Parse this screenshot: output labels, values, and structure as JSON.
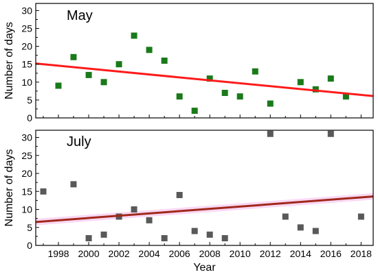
{
  "chart_data": [
    {
      "type": "scatter",
      "title": "May",
      "ylabel": "Number of days",
      "xlim": [
        1996.5,
        2018.8
      ],
      "ylim": [
        0,
        32
      ],
      "yticks": [
        0,
        5,
        10,
        15,
        20,
        25,
        30
      ],
      "grid": false,
      "marker_color": "#1a7a1a",
      "trend_color": "#ff1a1a",
      "series": [
        {
          "x": [
            1998,
            1999,
            2000,
            2001,
            2002,
            2003,
            2004,
            2005,
            2006,
            2007,
            2008,
            2009,
            2010,
            2011,
            2012,
            2014,
            2015,
            2016,
            2017
          ],
          "y": [
            9,
            17,
            12,
            10,
            15,
            23,
            19,
            16,
            6,
            2,
            11,
            7,
            6,
            13,
            4,
            10,
            8,
            11,
            6
          ]
        }
      ],
      "trend": {
        "x": [
          1996.5,
          2018.8
        ],
        "y": [
          15.2,
          6.1
        ]
      }
    },
    {
      "type": "scatter",
      "title": "July",
      "ylabel": "Number of days",
      "xlabel": "Year",
      "xlim": [
        1996.5,
        2018.8
      ],
      "ylim": [
        0,
        32
      ],
      "yticks": [
        0,
        5,
        10,
        15,
        20,
        25,
        30
      ],
      "xticks": [
        1998,
        2000,
        2002,
        2004,
        2006,
        2008,
        2010,
        2012,
        2014,
        2016,
        2018
      ],
      "grid": false,
      "marker_color": "#595959",
      "trend_color": "#a0281a",
      "band_color": "#f7c8f0",
      "series": [
        {
          "x": [
            1997,
            1999,
            2000,
            2001,
            2002,
            2003,
            2004,
            2005,
            2006,
            2007,
            2008,
            2009,
            2012,
            2013,
            2014,
            2015,
            2016,
            2018
          ],
          "y": [
            15,
            17,
            2,
            3,
            8,
            10,
            7,
            2,
            14,
            4,
            3,
            2,
            31,
            8,
            5,
            4,
            31,
            8
          ]
        }
      ],
      "trend": {
        "x": [
          1996.5,
          2018.8
        ],
        "y": [
          6.5,
          13.6
        ]
      }
    }
  ]
}
